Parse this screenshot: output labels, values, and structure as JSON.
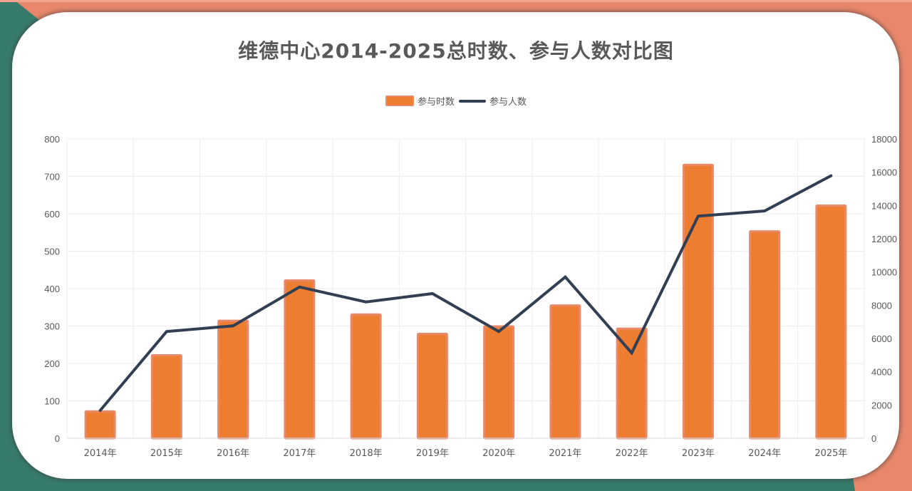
{
  "title": "维德中心2014-2025总时数、参与人数对比图",
  "legend": {
    "bar_label": "参与时数",
    "line_label": "参与人数"
  },
  "colors": {
    "bar_fill": "#ed7d31",
    "bar_border": "#e88a6a",
    "line": "#323f53",
    "frame_orange": "#e8876b",
    "frame_green": "#377b6c",
    "grid": "#eeeeee",
    "text": "#595959"
  },
  "chart_data": {
    "type": "bar",
    "combo": "bar+line",
    "title": "维德中心2014-2025总时数、参与人数对比图",
    "categories": [
      "2014年",
      "2015年",
      "2016年",
      "2017年",
      "2018年",
      "2019年",
      "2020年",
      "2021年",
      "2022年",
      "2023年",
      "2024年",
      "2025年"
    ],
    "series": [
      {
        "name": "参与时数",
        "type": "bar",
        "axis": "left",
        "values": [
          72,
          222,
          314,
          422,
          331,
          279,
          299,
          355,
          293,
          731,
          553,
          622
        ]
      },
      {
        "name": "参与人数",
        "type": "line",
        "axis": "right",
        "values": [
          1670,
          6420,
          6760,
          9100,
          8200,
          8700,
          6420,
          9700,
          5130,
          13360,
          13670,
          15790
        ]
      }
    ],
    "y_left": {
      "min": 0,
      "max": 800,
      "step": 100,
      "ticks": [
        "0",
        "100",
        "200",
        "300",
        "400",
        "500",
        "600",
        "700",
        "800"
      ]
    },
    "y_right": {
      "min": 0,
      "max": 18000,
      "step": 2000,
      "ticks": [
        "0",
        "2000",
        "4000",
        "6000",
        "8000",
        "10000",
        "12000",
        "14000",
        "16000",
        "18000"
      ]
    },
    "xlabel": "",
    "ylabel": "",
    "grid": true,
    "legend_position": "top"
  }
}
